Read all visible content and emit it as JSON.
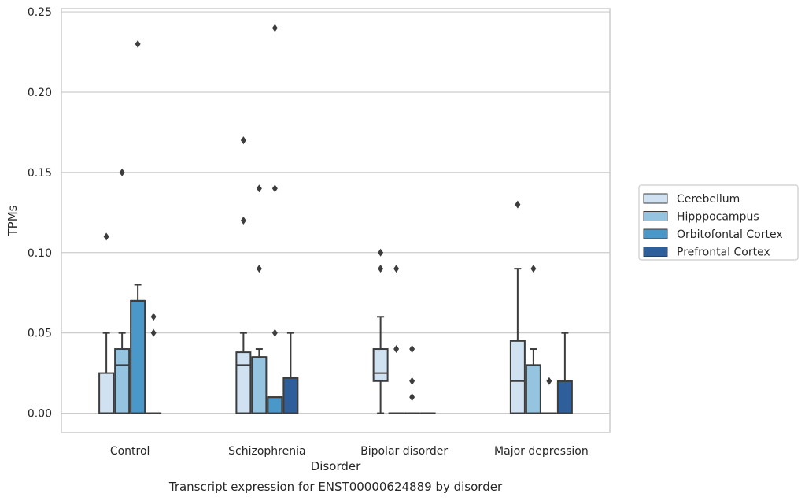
{
  "chart_data": {
    "type": "box",
    "title": "Transcript expression for ENST00000624889 by disorder",
    "xlabel": "Disorder",
    "ylabel": "TPMs",
    "ylim": [
      -0.012,
      0.252
    ],
    "yticks": [
      0.0,
      0.05,
      0.1,
      0.15,
      0.2,
      0.25
    ],
    "ytick_labels": [
      "0.00",
      "0.05",
      "0.10",
      "0.15",
      "0.20",
      "0.25"
    ],
    "categories": [
      "Control",
      "Schizophrenia",
      "Bipolar disorder",
      "Major depression"
    ],
    "grid": "horizontal",
    "legend_position": "right",
    "series": [
      {
        "name": "Cerebellum",
        "color": "#d0e1f2",
        "boxes": [
          {
            "q1": 0.0,
            "median": 0.0,
            "q3": 0.025,
            "whisker_low": 0.0,
            "whisker_high": 0.05,
            "outliers": [
              0.11
            ]
          },
          {
            "q1": 0.0,
            "median": 0.03,
            "q3": 0.038,
            "whisker_low": 0.0,
            "whisker_high": 0.05,
            "outliers": [
              0.12,
              0.17
            ]
          },
          {
            "q1": 0.02,
            "median": 0.025,
            "q3": 0.04,
            "whisker_low": 0.0,
            "whisker_high": 0.06,
            "outliers": [
              0.09,
              0.1
            ]
          },
          {
            "q1": 0.0,
            "median": 0.02,
            "q3": 0.045,
            "whisker_low": 0.0,
            "whisker_high": 0.09,
            "outliers": [
              0.13
            ]
          }
        ]
      },
      {
        "name": "Hipppocampus",
        "color": "#94c4df",
        "boxes": [
          {
            "q1": 0.0,
            "median": 0.03,
            "q3": 0.04,
            "whisker_low": 0.0,
            "whisker_high": 0.05,
            "outliers": [
              0.15
            ]
          },
          {
            "q1": 0.0,
            "median": 0.035,
            "q3": 0.035,
            "whisker_low": 0.0,
            "whisker_high": 0.04,
            "outliers": [
              0.09,
              0.14
            ]
          },
          {
            "q1": 0.0,
            "median": 0.0,
            "q3": 0.0,
            "whisker_low": 0.0,
            "whisker_high": 0.0,
            "outliers": [
              0.04,
              0.09
            ]
          },
          {
            "q1": 0.0,
            "median": 0.03,
            "q3": 0.03,
            "whisker_low": 0.0,
            "whisker_high": 0.04,
            "outliers": [
              0.09
            ]
          }
        ]
      },
      {
        "name": "Orbitofontal Cortex",
        "color": "#4a98c9",
        "boxes": [
          {
            "q1": 0.0,
            "median": 0.07,
            "q3": 0.07,
            "whisker_low": 0.0,
            "whisker_high": 0.08,
            "outliers": [
              0.23
            ]
          },
          {
            "q1": 0.0,
            "median": 0.01,
            "q3": 0.01,
            "whisker_low": 0.0,
            "whisker_high": 0.01,
            "outliers": [
              0.05,
              0.14,
              0.24
            ]
          },
          {
            "q1": 0.0,
            "median": 0.0,
            "q3": 0.0,
            "whisker_low": 0.0,
            "whisker_high": 0.0,
            "outliers": [
              0.01,
              0.02,
              0.04
            ]
          },
          {
            "q1": 0.0,
            "median": 0.0,
            "q3": 0.0,
            "whisker_low": 0.0,
            "whisker_high": 0.0,
            "outliers": [
              0.02
            ]
          }
        ]
      },
      {
        "name": "Prefrontal Cortex",
        "color": "#2e5f9a",
        "boxes": [
          {
            "q1": 0.0,
            "median": 0.0,
            "q3": 0.0,
            "whisker_low": 0.0,
            "whisker_high": 0.0,
            "outliers": [
              0.05,
              0.06
            ]
          },
          {
            "q1": 0.0,
            "median": 0.022,
            "q3": 0.022,
            "whisker_low": 0.0,
            "whisker_high": 0.05,
            "outliers": []
          },
          {
            "q1": 0.0,
            "median": 0.0,
            "q3": 0.0,
            "whisker_low": 0.0,
            "whisker_high": 0.0,
            "outliers": []
          },
          {
            "q1": 0.0,
            "median": 0.02,
            "q3": 0.02,
            "whisker_low": 0.0,
            "whisker_high": 0.05,
            "outliers": []
          }
        ]
      }
    ]
  }
}
